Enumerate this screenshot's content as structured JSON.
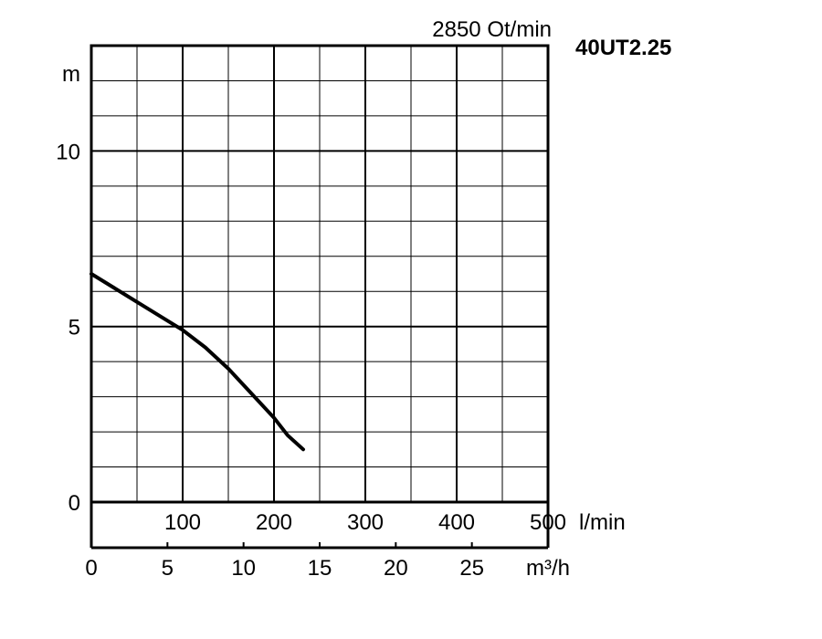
{
  "chart_data": {
    "type": "line",
    "title": "40UT2.25",
    "subtitle": "2850 Ot/min",
    "ylabel": "m",
    "ylim": [
      0,
      13
    ],
    "yticks": [
      0,
      5,
      10
    ],
    "grid": true,
    "x_lpm": {
      "unit": "l/min",
      "range": [
        0,
        500
      ],
      "ticks": [
        100,
        200,
        300,
        400,
        500
      ]
    },
    "x_m3h": {
      "unit": "m³/h",
      "range": [
        0,
        30
      ],
      "ticks": [
        0,
        5,
        10,
        15,
        20,
        25
      ]
    },
    "series": [
      {
        "x_lpm": [
          0,
          25,
          50,
          75,
          100,
          125,
          150,
          175,
          200,
          215,
          232
        ],
        "y": [
          6.5,
          6.1,
          5.7,
          5.3,
          4.9,
          4.4,
          3.8,
          3.1,
          2.4,
          1.9,
          1.5
        ]
      }
    ],
    "colors": {
      "line": "#000000",
      "grid": "#000000"
    }
  }
}
